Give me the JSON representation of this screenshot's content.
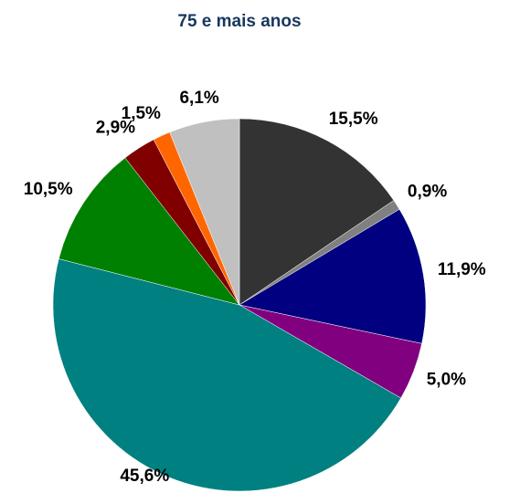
{
  "chart_data": {
    "type": "pie",
    "title": "75 e mais anos",
    "categories": [
      null,
      null,
      null,
      null,
      null,
      null,
      null,
      null,
      null
    ],
    "values": [
      15.5,
      0.9,
      11.9,
      5.0,
      45.6,
      10.5,
      2.9,
      1.5,
      6.1
    ],
    "value_labels": [
      "15,5%",
      "0,9%",
      "11,9%",
      "5,0%",
      "45,6%",
      "10,5%",
      "2,9%",
      "1,5%",
      "6,1%"
    ],
    "colors": [
      "#333333",
      "#808080",
      "#000080",
      "#800080",
      "#008080",
      "#008000",
      "#800000",
      "#ff6600",
      "#c0c0c0"
    ]
  }
}
